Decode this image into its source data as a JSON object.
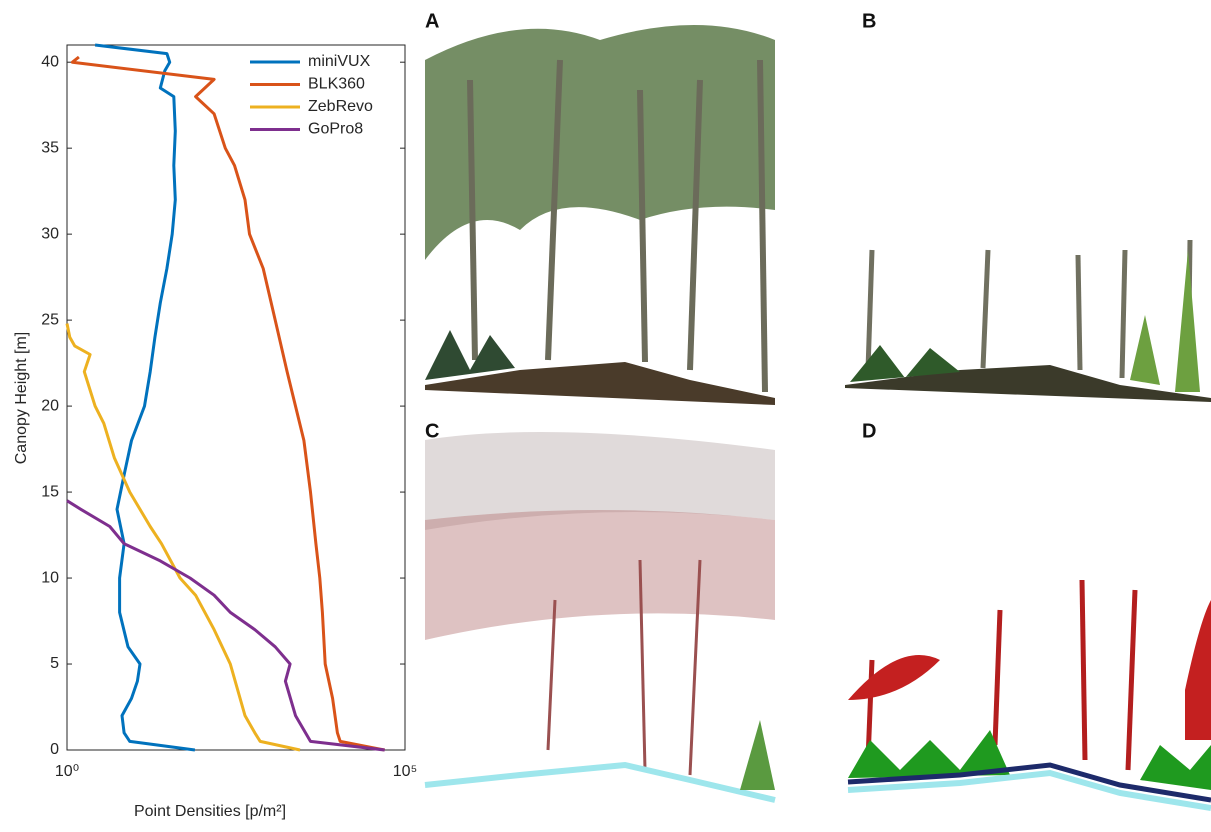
{
  "chart_data": {
    "type": "line",
    "xlabel": "Point Densities [p/m²]",
    "ylabel": "Canopy Height [m]",
    "xscale": "log",
    "xlim": [
      1,
      100000
    ],
    "xticks": [
      {
        "value": 1,
        "label": "10⁰"
      },
      {
        "value": 100000,
        "label": "10⁵"
      }
    ],
    "ylim": [
      0,
      41
    ],
    "yticks": [
      0,
      5,
      10,
      15,
      20,
      25,
      30,
      35,
      40
    ],
    "legend": "upper right",
    "series": [
      {
        "name": "miniVUX",
        "color": "#0072bd",
        "x": [
          78,
          8.5,
          7,
          6.5,
          9,
          11,
          12,
          8,
          6,
          6,
          7,
          5.5,
          7,
          9,
          14,
          17,
          20,
          24,
          30,
          36,
          40,
          38,
          40,
          38,
          24,
          28,
          33,
          30,
          2.6
        ],
        "y": [
          0,
          0.5,
          1,
          2,
          3,
          4,
          5,
          6,
          8,
          10,
          12,
          14,
          16,
          18,
          20,
          22,
          24,
          26,
          28,
          30,
          32,
          34,
          36,
          38,
          38.5,
          39.5,
          40,
          40.5,
          41
        ]
      },
      {
        "name": "BLK360",
        "color": "#d95319",
        "x": [
          50000,
          11000,
          10000,
          8500,
          6600,
          6000,
          5500,
          4800,
          4000,
          3200,
          2400,
          1800,
          1200,
          800,
          500,
          430,
          300,
          220,
          150,
          80,
          150,
          1.2,
          1.5
        ],
        "y": [
          0,
          0.5,
          1,
          3,
          5,
          8,
          10,
          12,
          15,
          18,
          20,
          22,
          25,
          28,
          30,
          32,
          34,
          35,
          37,
          38,
          39,
          40,
          40.3
        ]
      },
      {
        "name": "ZebRevo",
        "color": "#edb120",
        "x": [
          2800,
          720,
          600,
          430,
          260,
          150,
          80,
          47,
          25,
          17,
          8.5,
          5,
          3.5,
          2.6,
          1.8,
          2.2,
          1.3,
          1.1,
          1
        ],
        "y": [
          0,
          0.5,
          1,
          2,
          5,
          7,
          9,
          10,
          12,
          13,
          15,
          17,
          19,
          20,
          22,
          23,
          23.5,
          24,
          24.8
        ]
      },
      {
        "name": "GoPro8",
        "color": "#7e2f8e",
        "x": [
          50000,
          4000,
          2400,
          1700,
          2000,
          1200,
          600,
          260,
          150,
          66,
          24,
          7,
          4.3,
          1.6,
          1
        ],
        "y": [
          0,
          0.5,
          2,
          4,
          5,
          6,
          7,
          8,
          9,
          10,
          11,
          12,
          13,
          14,
          14.5
        ]
      }
    ]
  },
  "panels": [
    "A",
    "B",
    "C",
    "D"
  ]
}
